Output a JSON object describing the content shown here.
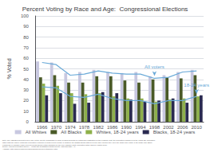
{
  "chart_data": {
    "type": "bar",
    "title": "Percent Voting by Race and Age:  Congressional Elections",
    "ylabel": "% Voted",
    "categories": [
      "1966",
      "1970",
      "1974",
      "1978",
      "1982",
      "1986",
      "1990",
      "1994",
      "1998",
      "2002",
      "2006",
      "2010"
    ],
    "series": [
      {
        "name": "All Whites",
        "color": "#c8c8e0",
        "values": [
          57,
          56,
          46,
          47,
          49,
          47,
          46,
          47,
          43,
          44,
          47,
          49
        ]
      },
      {
        "name": "All Blacks",
        "color": "#4a5a28",
        "values": [
          42,
          44,
          37,
          37,
          43,
          43,
          39,
          37,
          40,
          42,
          41,
          44
        ]
      },
      {
        "name": "Whites, 18-24 years",
        "color": "#8db04a",
        "values": [
          36,
          34,
          27,
          26,
          27,
          24,
          22,
          22,
          19,
          21,
          22,
          24
        ]
      },
      {
        "name": "Blacks, 18-24 years",
        "color": "#2a2a50",
        "values": [
          25,
          27,
          17,
          18,
          28,
          27,
          21,
          19,
          20,
          22,
          18,
          25
        ]
      },
      {
        "type": "line",
        "color": "#6aaad8",
        "values": [
          56,
          54,
          44,
          45,
          48,
          46,
          45,
          45,
          41,
          42,
          47,
          48
        ]
      },
      {
        "type": "line",
        "color": "#6aaad8",
        "values": [
          33,
          32,
          24,
          23,
          26,
          22,
          20,
          20,
          17,
          20,
          20,
          24
        ]
      }
    ],
    "annotations": [
      {
        "text": "All voters",
        "x": "1998",
        "y": 41,
        "color": "#6aaad8"
      },
      {
        "text": "18-24 years",
        "x": "2010",
        "y": 24,
        "color": "#6aaad8"
      }
    ],
    "note": "Note: The estimates presented here may not be directly comparable to some Census products on voting and registration for two reasons. First, the population considered is the voting age population,\nrather than the citizen voting age population examined in most recent reports. In addition, the graphs shows data for people who reported they were the single-race White or the single-race Black,\nregardless of Hispanic origin. Recent reports shows voting estimates for the non-Hispanic White population rather than for Whites alone.\nSource: Current Population Survey - Voting and Registration Supplements, Historical table A-1.\nAvailable: http://www.census.gov/hhes/www/socdemo/voting/index.html",
    "ylim": [
      0,
      100
    ],
    "yticks": [
      0,
      10,
      20,
      30,
      40,
      50,
      60,
      70,
      80,
      90,
      100
    ],
    "grid": true,
    "legend": "bottom"
  }
}
